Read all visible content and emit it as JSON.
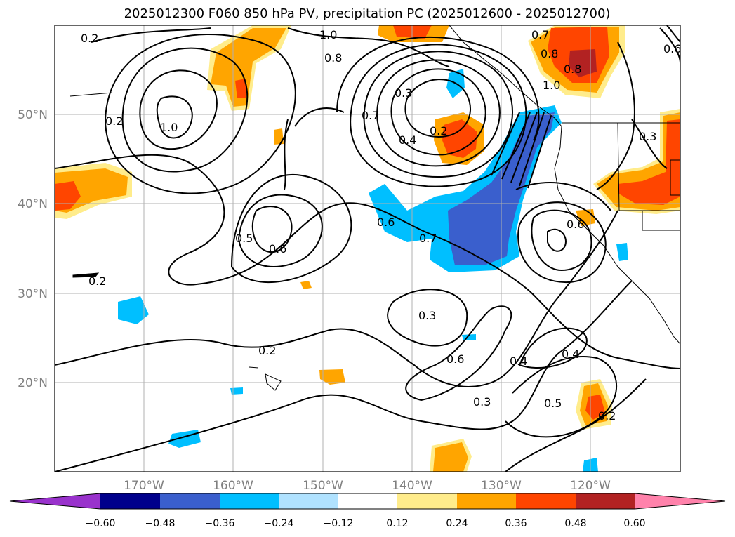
{
  "title": "2025012300 F060 850 hPa PV, precipitation PC (2025012600 - 2025012700)",
  "lon_ticks": [
    "170°W",
    "160°W",
    "150°W",
    "140°W",
    "130°W",
    "120°W"
  ],
  "lat_ticks": [
    "50°N",
    "40°N",
    "30°N",
    "20°N"
  ],
  "colorbar": {
    "ticks": [
      "−0.60",
      "−0.48",
      "−0.36",
      "−0.24",
      "−0.12",
      "0.12",
      "0.24",
      "0.36",
      "0.48",
      "0.60"
    ],
    "colors": [
      "#9932cc",
      "#00008b",
      "#3a5fcd",
      "#00bfff",
      "#b0e2ff",
      "#ffffff",
      "#ffec8b",
      "#ffa500",
      "#ff4500",
      "#b22222",
      "#ff82ab"
    ]
  },
  "contour_labels": [
    "0.2",
    "1.0",
    "0.8",
    "0.7",
    "0.8",
    "0.8",
    "1.0",
    "0.6",
    "0.2",
    "1.0",
    "0.7",
    "0.3",
    "0.4",
    "0.2",
    "0.3",
    "0.5",
    "0.6",
    "0.6",
    "0.7",
    "0.6",
    "0.2",
    "0.3",
    "0.6",
    "0.4",
    "0.4",
    "0.2",
    "0.3",
    "0.5",
    "0.2"
  ]
}
